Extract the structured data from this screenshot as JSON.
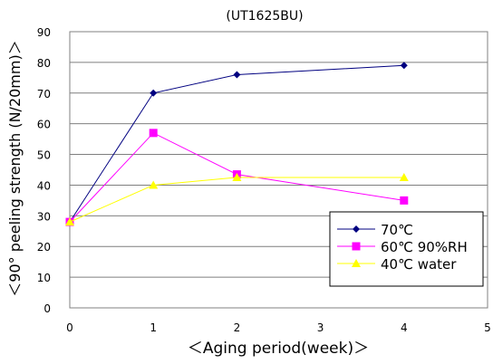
{
  "chart_data": {
    "type": "line",
    "title": "(UT1625BU)",
    "xlabel": "＜Aging period(week)＞",
    "ylabel": "＜90° peeling strength (N/20mm)＞",
    "xlim": [
      0,
      5
    ],
    "ylim": [
      0,
      90
    ],
    "x_ticks": [
      "0",
      "1",
      "2",
      "3",
      "4",
      "5"
    ],
    "y_ticks": [
      "0",
      "10",
      "20",
      "30",
      "40",
      "50",
      "60",
      "70",
      "80",
      "90"
    ],
    "grid": "horizontal",
    "legend_position": "bottom-right",
    "series": [
      {
        "name": "70℃",
        "color": "#000080",
        "marker": "diamond",
        "x": [
          0,
          1,
          2,
          4
        ],
        "y": [
          28,
          70,
          76,
          79
        ]
      },
      {
        "name": "60℃ 90%RH",
        "color": "#ff00ff",
        "marker": "square",
        "x": [
          0,
          1,
          2,
          4
        ],
        "y": [
          28,
          57,
          43.5,
          35
        ]
      },
      {
        "name": "40℃ water",
        "color": "#ffff00",
        "marker": "triangle",
        "x": [
          0,
          1,
          2,
          4
        ],
        "y": [
          28,
          40,
          42.5,
          42.5
        ]
      }
    ]
  }
}
